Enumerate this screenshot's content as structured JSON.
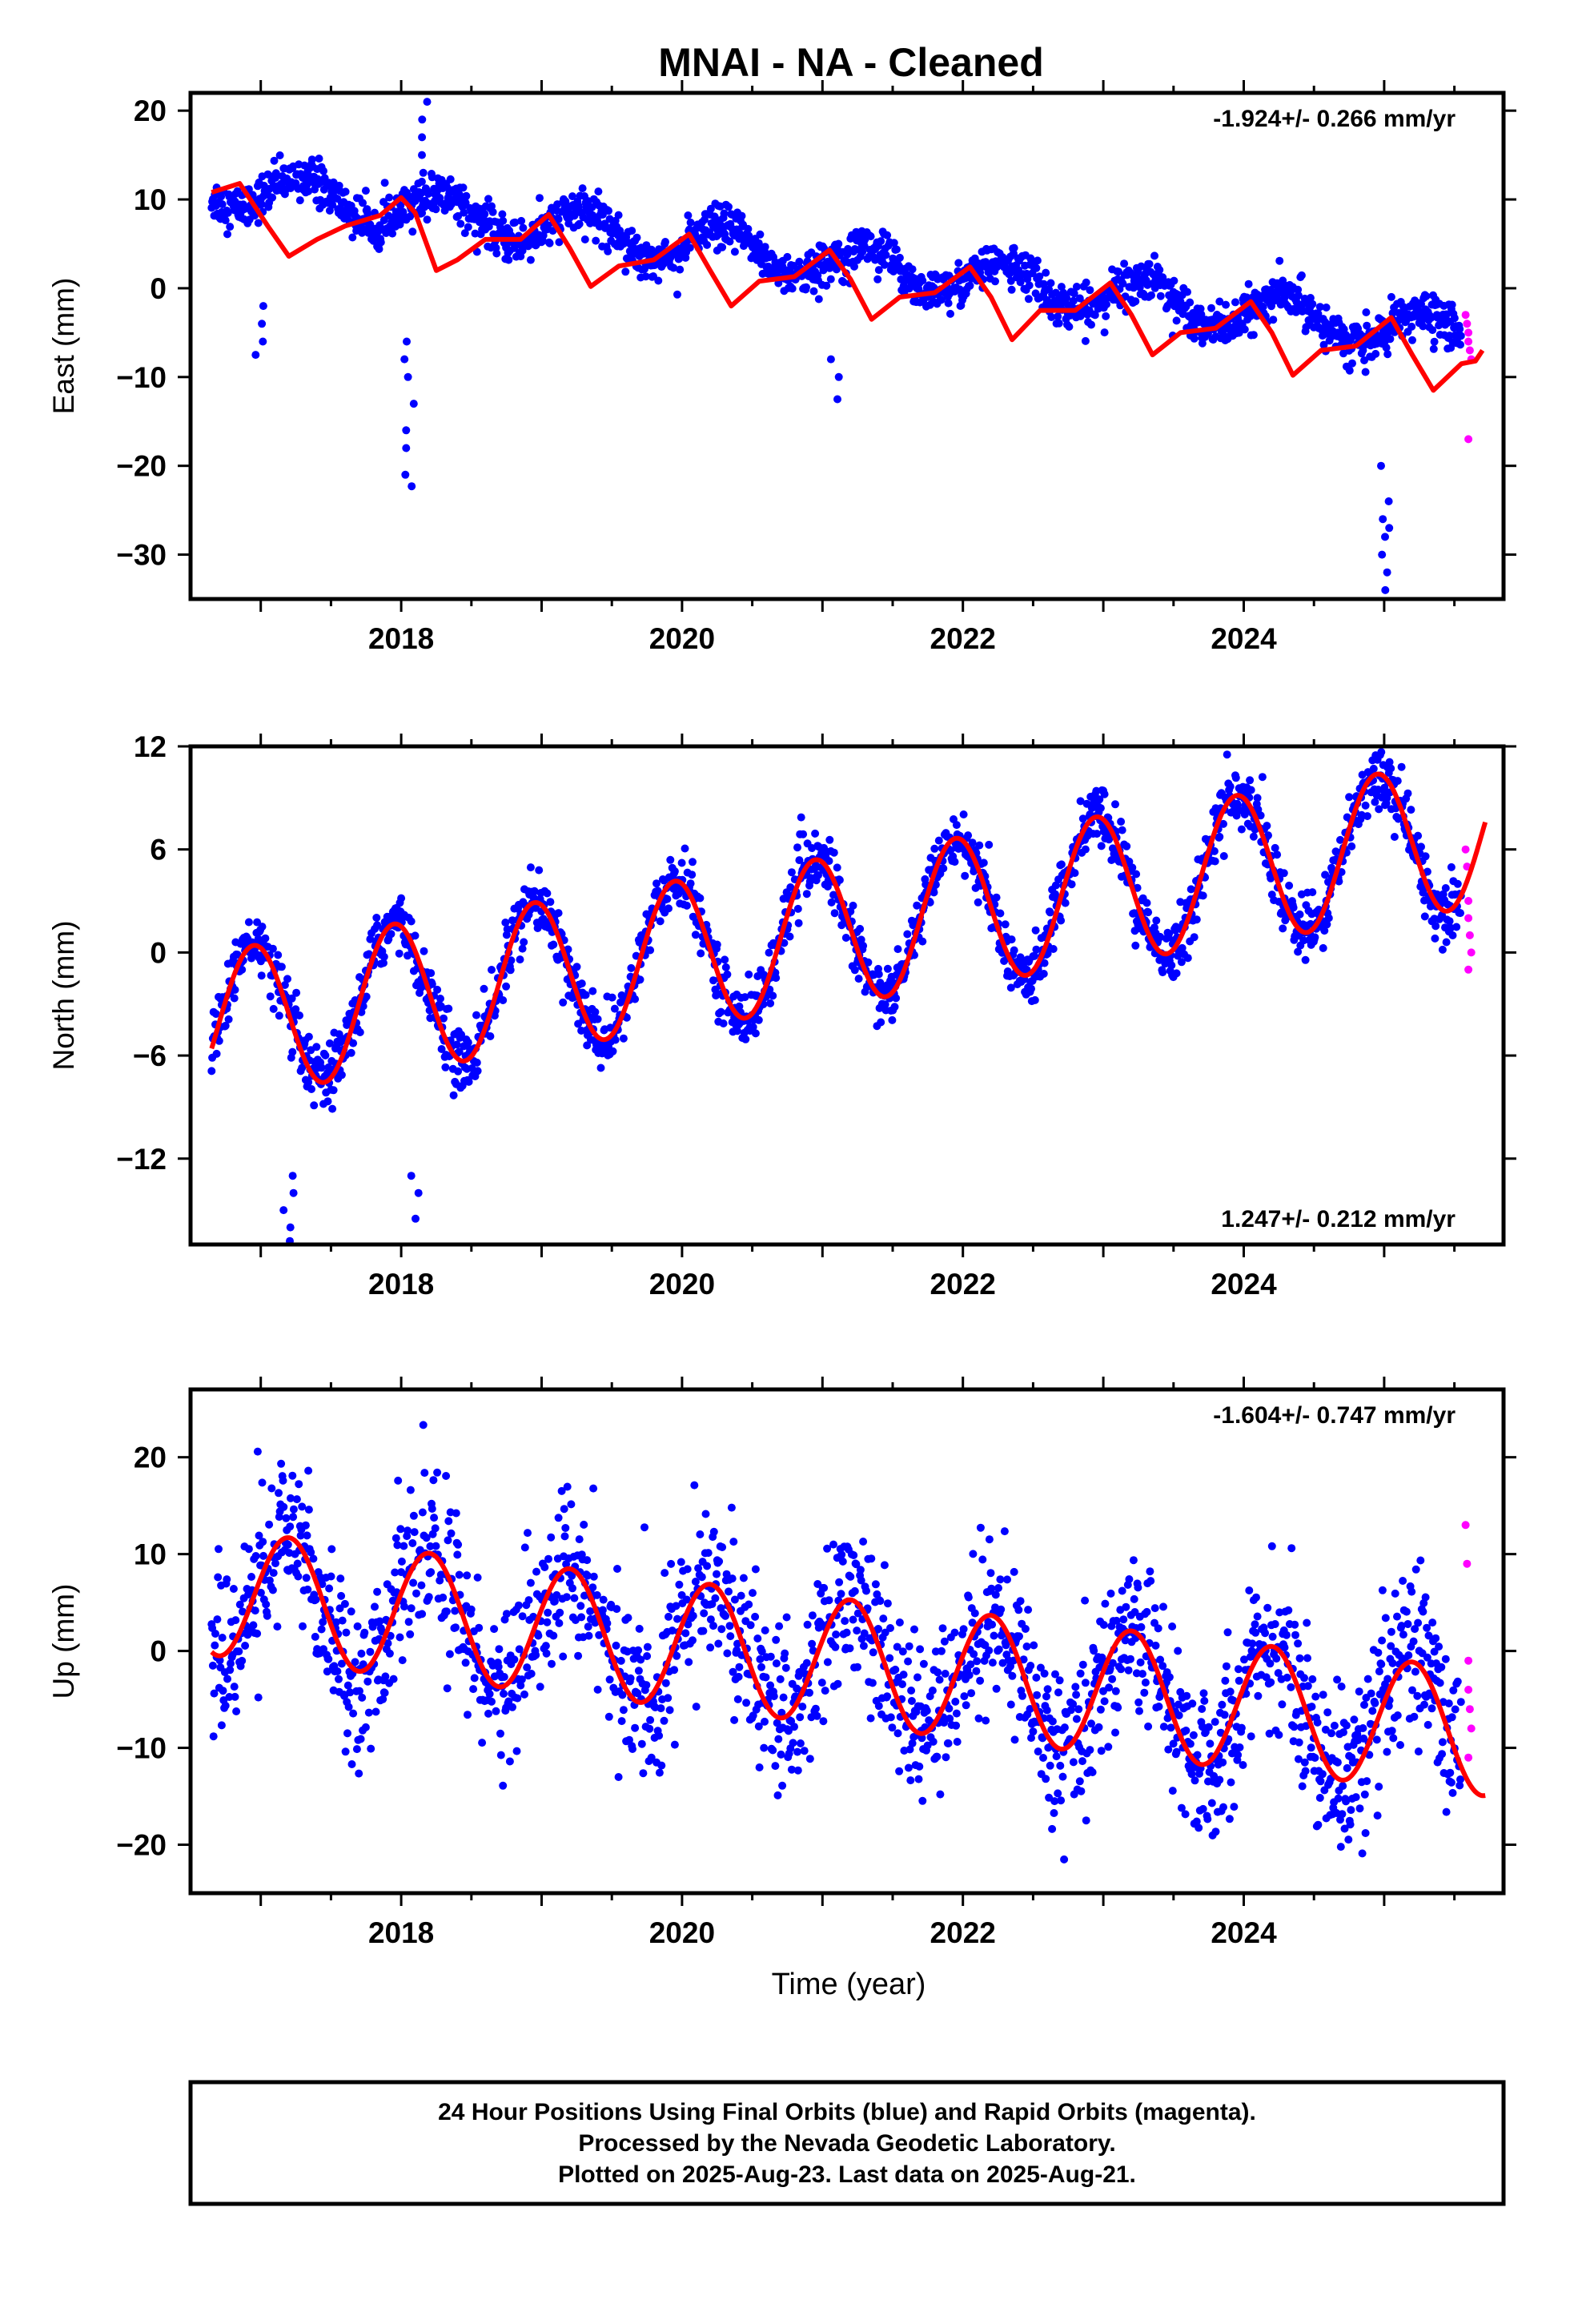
{
  "chart_data": [
    {
      "type": "scatter",
      "title": "MNAI  - NA - Cleaned",
      "ylabel": "East (mm)",
      "xlabel": "",
      "rate": "-1.924+/- 0.266 mm/yr",
      "rate_position": "top-right",
      "xlim": [
        2016.5,
        2025.85
      ],
      "ylim": [
        -35,
        22
      ],
      "xticks": [
        "2018",
        "2020",
        "2022",
        "2024"
      ],
      "xtick_values": [
        2018,
        2020,
        2022,
        2024
      ],
      "yticks": [
        "20",
        "10",
        "0",
        "−10",
        "−20",
        "−30"
      ],
      "ytick_values": [
        20,
        10,
        0,
        -10,
        -20,
        -30
      ],
      "grid": false,
      "colors": {
        "final": "#0000ff",
        "rapid": "#ff00ff",
        "model": "#ff0000"
      },
      "series": [
        {
          "name": "Final Orbits (blue)",
          "kind": "scatter",
          "trend": {
            "intercept_2016_7": 11.5,
            "slope_mm_per_yr": -1.924,
            "annual_amp": 2.2,
            "annual_phase": 0.6,
            "noise_sd": 1.2
          },
          "offsets": [
            {
              "x": 2018.15,
              "y": 2.0
            },
            {
              "x": 2019.2,
              "y": -2.5
            },
            {
              "x": 2021.1,
              "y": -3.0
            }
          ],
          "excursions": [
            {
              "x": 2018.05,
              "y": [
                -22.3,
                -21,
                -18,
                -16,
                -13,
                -10,
                -8,
                -6
              ]
            },
            {
              "x": 2018.15,
              "y": [
                21,
                19,
                17,
                15,
                13,
                12
              ]
            },
            {
              "x": 2025.0,
              "y": [
                -34,
                -32,
                -30,
                -28,
                -27,
                -26,
                -24,
                -20
              ]
            },
            {
              "x": 2017.0,
              "y": [
                -7.5,
                -6,
                -4,
                -2
              ]
            },
            {
              "x": 2021.1,
              "y": [
                -12.5,
                -10,
                -8
              ]
            }
          ],
          "x_range": [
            2016.65,
            2025.55
          ]
        },
        {
          "name": "Rapid Orbits (magenta)",
          "kind": "scatter",
          "points": [
            [
              2025.58,
              -3
            ],
            [
              2025.59,
              -4
            ],
            [
              2025.6,
              -5
            ],
            [
              2025.6,
              -6
            ],
            [
              2025.61,
              -7
            ],
            [
              2025.62,
              -8
            ],
            [
              2025.6,
              -17
            ]
          ]
        },
        {
          "name": "model",
          "kind": "line",
          "points": [
            [
              2016.65,
              10.8
            ],
            [
              2016.85,
              11.8
            ],
            [
              2017.05,
              7.0
            ],
            [
              2017.2,
              3.6
            ],
            [
              2017.4,
              5.5
            ],
            [
              2017.6,
              7.0
            ],
            [
              2017.85,
              8.2
            ],
            [
              2018.0,
              10.2
            ],
            [
              2018.1,
              8.5
            ],
            [
              2018.25,
              2.0
            ],
            [
              2018.4,
              3.2
            ],
            [
              2018.6,
              5.5
            ],
            [
              2018.85,
              5.5
            ],
            [
              2019.05,
              8.3
            ],
            [
              2019.2,
              4.5
            ],
            [
              2019.35,
              0.2
            ],
            [
              2019.55,
              2.5
            ],
            [
              2019.8,
              3.2
            ],
            [
              2020.05,
              6.1
            ],
            [
              2020.2,
              2.0
            ],
            [
              2020.35,
              -2.0
            ],
            [
              2020.55,
              0.8
            ],
            [
              2020.8,
              1.3
            ],
            [
              2021.05,
              4.3
            ],
            [
              2021.2,
              1.0
            ],
            [
              2021.35,
              -3.5
            ],
            [
              2021.55,
              -1.0
            ],
            [
              2021.8,
              -0.5
            ],
            [
              2022.05,
              2.4
            ],
            [
              2022.2,
              -1.0
            ],
            [
              2022.35,
              -5.8
            ],
            [
              2022.55,
              -2.5
            ],
            [
              2022.8,
              -2.5
            ],
            [
              2023.05,
              0.6
            ],
            [
              2023.2,
              -3.0
            ],
            [
              2023.35,
              -7.5
            ],
            [
              2023.55,
              -5.0
            ],
            [
              2023.8,
              -4.5
            ],
            [
              2024.05,
              -1.5
            ],
            [
              2024.2,
              -5.0
            ],
            [
              2024.35,
              -9.8
            ],
            [
              2024.55,
              -7.0
            ],
            [
              2024.8,
              -6.5
            ],
            [
              2025.05,
              -3.3
            ],
            [
              2025.2,
              -7.5
            ],
            [
              2025.35,
              -11.5
            ],
            [
              2025.55,
              -8.5
            ],
            [
              2025.65,
              -8.2
            ],
            [
              2025.7,
              -7.0
            ]
          ]
        }
      ]
    },
    {
      "type": "scatter",
      "ylabel": "North (mm)",
      "xlabel": "",
      "rate": "1.247+/- 0.212 mm/yr",
      "rate_position": "bottom-right",
      "xlim": [
        2016.5,
        2025.85
      ],
      "ylim": [
        -17,
        12
      ],
      "xticks": [
        "2018",
        "2020",
        "2022",
        "2024"
      ],
      "xtick_values": [
        2018,
        2020,
        2022,
        2024
      ],
      "yticks": [
        "12",
        "6",
        "0",
        "−6",
        "−12"
      ],
      "ytick_values": [
        12,
        6,
        0,
        -6,
        -12
      ],
      "grid": false,
      "series": [
        {
          "name": "Final Orbits (blue)",
          "kind": "scatter",
          "trend": {
            "intercept_2016_7": -4.2,
            "slope_mm_per_yr": 1.247,
            "annual_amp": 4.3,
            "annual_phase": 0.25,
            "noise_sd": 0.9
          },
          "excursions": [
            {
              "x": 2017.2,
              "y": [
                -16.8,
                -16,
                -15,
                -14,
                -13
              ]
            },
            {
              "x": 2018.1,
              "y": [
                -15.5,
                -14,
                -13
              ]
            },
            {
              "x": 2024.95,
              "y": [
                11.5
              ]
            }
          ],
          "x_range": [
            2016.65,
            2025.55
          ]
        },
        {
          "name": "Rapid Orbits (magenta)",
          "kind": "scatter",
          "points": [
            [
              2025.58,
              6
            ],
            [
              2025.59,
              5
            ],
            [
              2025.6,
              3
            ],
            [
              2025.6,
              2
            ],
            [
              2025.61,
              1
            ],
            [
              2025.62,
              0
            ],
            [
              2025.6,
              -1
            ]
          ]
        },
        {
          "name": "model",
          "kind": "line",
          "model": {
            "intercept_2016_7": -4.2,
            "slope_mm_per_yr": 1.247,
            "annual_amp": 4.3,
            "annual_phase": 0.25
          }
        }
      ]
    },
    {
      "type": "scatter",
      "ylabel": "Up (mm)",
      "xlabel": "Time (year)",
      "rate": "-1.604+/- 0.747 mm/yr",
      "rate_position": "top-right",
      "xlim": [
        2016.5,
        2025.85
      ],
      "ylim": [
        -25,
        27
      ],
      "xticks": [
        "2018",
        "2020",
        "2022",
        "2024"
      ],
      "xtick_values": [
        2018,
        2020,
        2022,
        2024
      ],
      "yticks": [
        "20",
        "10",
        "0",
        "−10",
        "−20"
      ],
      "ytick_values": [
        20,
        10,
        0,
        -10,
        -20
      ],
      "grid": false,
      "series": [
        {
          "name": "Final Orbits (blue)",
          "kind": "scatter",
          "trend": {
            "intercept_2016_7": 6.0,
            "slope_mm_per_yr": -1.604,
            "annual_amp": 6.5,
            "annual_phase": 0.5,
            "noise_sd": 4.2
          },
          "x_range": [
            2016.65,
            2025.55
          ]
        },
        {
          "name": "Rapid Orbits (magenta)",
          "kind": "scatter",
          "points": [
            [
              2025.58,
              13
            ],
            [
              2025.59,
              9
            ],
            [
              2025.6,
              -1
            ],
            [
              2025.6,
              -4
            ],
            [
              2025.61,
              -6
            ],
            [
              2025.62,
              -8
            ],
            [
              2025.6,
              -11
            ]
          ]
        },
        {
          "name": "model",
          "kind": "line",
          "model": {
            "intercept_2016_7": 6.0,
            "slope_mm_per_yr": -1.604,
            "annual_amp": 6.5,
            "annual_phase": 0.5
          }
        }
      ]
    }
  ],
  "footer": {
    "line1": "24 Hour Positions Using Final Orbits (blue) and Rapid Orbits (magenta).",
    "line2": "Processed by the Nevada Geodetic Laboratory.",
    "line3": "Plotted on 2025-Aug-23. Last data on 2025-Aug-21."
  }
}
